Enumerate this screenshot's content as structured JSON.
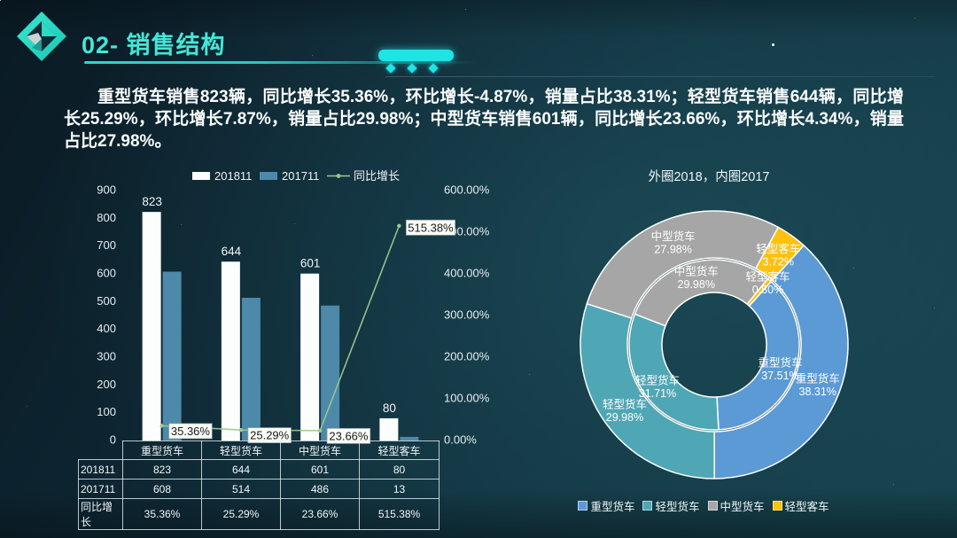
{
  "slide": {
    "title": "02- 销售结构",
    "summary": "重型货车销售823辆，同比增长35.36%，环比增长-4.87%，销量占比38.31%；轻型货车销售644辆，同比增长25.29%，环比增长7.87%，销量占比29.98%；中型货车销售601辆，同比增长23.66%，环比增长4.34%，销量占比27.98%。"
  },
  "chart_data": [
    {
      "type": "bar",
      "title": "",
      "categories": [
        "重型货车",
        "轻型货车",
        "中型货车",
        "轻型客车"
      ],
      "series": [
        {
          "name": "201811",
          "kind": "bar",
          "color": "#fcfdfd",
          "values": [
            823,
            644,
            601,
            80
          ],
          "show_value_labels": true
        },
        {
          "name": "201711",
          "kind": "bar",
          "color": "#4d89a8",
          "values": [
            608,
            514,
            486,
            13
          ]
        },
        {
          "name": "同比增长",
          "kind": "line",
          "color": "#9dc78f",
          "values_pct": [
            35.36,
            25.29,
            23.66,
            515.38
          ],
          "point_labels": [
            "35.36%",
            "25.29%",
            "23.66%",
            "515.38%"
          ]
        }
      ],
      "left_axis": {
        "min": 0,
        "max": 900,
        "ticks": [
          "0",
          "100",
          "200",
          "300",
          "400",
          "500",
          "600",
          "700",
          "800",
          "900"
        ]
      },
      "right_axis": {
        "min": 0,
        "max": 600,
        "ticks": [
          "0.00%",
          "100.00%",
          "200.00%",
          "300.00%",
          "400.00%",
          "500.00%",
          "600.00%"
        ]
      },
      "legend_position": "top",
      "grid": false
    },
    {
      "type": "pie",
      "subtype": "double-donut",
      "title": "外圈2018，内圈2017",
      "categories": [
        "重型货车",
        "轻型货车",
        "中型货车",
        "轻型客车"
      ],
      "colors": [
        "#5b9ad5",
        "#4fa7b5",
        "#a6a6a6",
        "#fec10f"
      ],
      "start_angle_deg": 42,
      "rings": [
        {
          "name": "2018",
          "position": "outer",
          "values": [
            38.31,
            29.98,
            27.98,
            3.72
          ],
          "labels": [
            "重型货车 38.31%",
            "轻型货车 29.98%",
            "中型货车 27.98%",
            "轻型客车 3.72%"
          ]
        },
        {
          "name": "2017",
          "position": "inner",
          "values": [
            37.51,
            31.71,
            29.98,
            0.8
          ],
          "labels": [
            "重型货车 37.51%",
            "轻型货车 31.71%",
            "中型货车 29.98%",
            "轻型客车 0.80%"
          ]
        }
      ],
      "legend_position": "bottom"
    }
  ],
  "table": {
    "col_headers": [
      "重型货车",
      "轻型货车",
      "中型货车",
      "轻型客车"
    ],
    "rows": [
      {
        "label": "201811",
        "cells": [
          "823",
          "644",
          "601",
          "80"
        ]
      },
      {
        "label": "201711",
        "cells": [
          "608",
          "514",
          "486",
          "13"
        ]
      },
      {
        "label": "同比增长",
        "cells": [
          "35.36%",
          "25.29%",
          "23.66%",
          "515.38%"
        ]
      }
    ]
  }
}
